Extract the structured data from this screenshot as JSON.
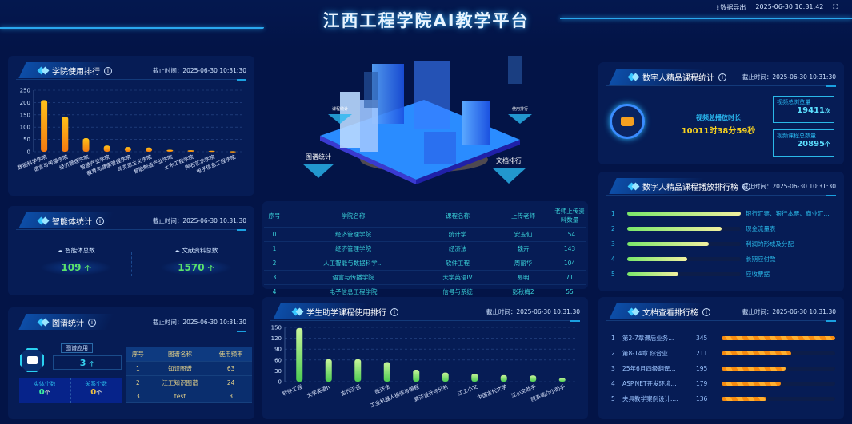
{
  "header": {
    "title": "江西工程学院AI教学平台",
    "export_label": "⇪数据导出",
    "datetime": "2025-06-30 10:31:42",
    "fullscreen_icon": "fullscreen-icon"
  },
  "date_label": "截止时间：2025-06-30 10:31:30",
  "college_rank": {
    "title": "学院使用排行"
  },
  "agent_stats": {
    "title": "智能体统计",
    "agent_label": "智能体总数",
    "agent_value": "109",
    "doc_label": "文献资料总数",
    "doc_value": "1570",
    "unit": "个"
  },
  "graph_stats": {
    "title": "图谱统计",
    "app_label": "图谱应用",
    "app_value": "3",
    "unit": "个",
    "entity_label": "实体个数",
    "entity_value": "0",
    "relation_label": "关系个数",
    "relation_value": "0",
    "columns": [
      "序号",
      "图谱名称",
      "使用频率"
    ],
    "rows": [
      [
        "1",
        "知识图谱",
        "63"
      ],
      [
        "2",
        "江工知识图谱",
        "24"
      ],
      [
        "3",
        "test",
        "3"
      ]
    ]
  },
  "center": {
    "labels": [
      "课程统计",
      "使用排行",
      "图谱统计",
      "文档排行"
    ]
  },
  "course_table": {
    "columns": [
      "序号",
      "学院名称",
      "课程名称",
      "上传老师",
      "老师上传资料数量"
    ],
    "rows": [
      [
        "0",
        "经济管理学院",
        "统计学",
        "安玉仙",
        "154"
      ],
      [
        "1",
        "经济管理学院",
        "经济法",
        "魏卉",
        "143"
      ],
      [
        "2",
        "人工智能与数据科学...",
        "软件工程",
        "周丽华",
        "104"
      ],
      [
        "3",
        "语言与传播学院",
        "大学英语IV",
        "易明",
        "71"
      ],
      [
        "4",
        "电子信息工程学院",
        "信号与系统",
        "彭秋梅2",
        "55"
      ]
    ]
  },
  "student_rank": {
    "title": "学生助学课程使用排行"
  },
  "digital": {
    "title": "数字人精品课程统计",
    "duration_label": "视频总播放时长",
    "duration_value": "10011时38分59秒",
    "views_label": "视频总浏览量",
    "views_value": "19411",
    "views_unit": "次",
    "count_label": "视频课程总数量",
    "count_value": "20895",
    "count_unit": "个"
  },
  "play_rank": {
    "title": "数字人精品课程播放排行榜",
    "items": [
      {
        "rank": "1",
        "name": "银行汇票、银行本票、商业汇...",
        "fraction": 1.0
      },
      {
        "rank": "2",
        "name": "现金流量表",
        "fraction": 0.83
      },
      {
        "rank": "3",
        "name": "利润的形成及分配",
        "fraction": 0.72
      },
      {
        "rank": "4",
        "name": "长期应付款",
        "fraction": 0.53
      },
      {
        "rank": "5",
        "name": "应收票据",
        "fraction": 0.45
      }
    ]
  },
  "doc_rank": {
    "title": "文档查看排行榜",
    "items": [
      {
        "rank": "1",
        "name": "第2-7章课后业务...",
        "value": "345"
      },
      {
        "rank": "2",
        "name": "第8-14章 综合业...",
        "value": "211"
      },
      {
        "rank": "3",
        "name": "25年6月四级翻译...",
        "value": "195"
      },
      {
        "rank": "4",
        "name": "ASP.NET开发环境...",
        "value": "179"
      },
      {
        "rank": "5",
        "name": "夹具教学案例设计....",
        "value": "136"
      }
    ]
  },
  "chart_data": [
    {
      "type": "bar",
      "categories": [
        "数据科学学院",
        "语言与传播学院",
        "经济管理学院",
        "智慧产业学院",
        "教育与健康管理学院",
        "马克思主义学院",
        "智能制造产业学院",
        "土木工程学院",
        "陶石艺术学院",
        "电子信息工程学院"
      ],
      "values": [
        210,
        143,
        55,
        25,
        19,
        17,
        8,
        6,
        4,
        2
      ],
      "ylim": [
        0,
        250
      ],
      "yticks": [
        "0",
        "50",
        "100",
        "150",
        "200",
        "250"
      ],
      "grid": true,
      "colors": [
        "#ffc21a",
        "#f57a10"
      ]
    },
    {
      "type": "bar",
      "categories": [
        "软件工程",
        "大学英语IV",
        "古代汉语",
        "经济法",
        "工业机器人操作与编程",
        "算法设计与分析",
        "江工小文",
        "中国古代文学",
        "江小文助手",
        "院系简介小助手"
      ],
      "values": [
        148,
        62,
        62,
        54,
        33,
        25,
        22,
        18,
        17,
        10
      ],
      "ylim": [
        0,
        150
      ],
      "yticks": [
        "0",
        "30",
        "60",
        "90",
        "120",
        "150"
      ],
      "grid": true,
      "colors": [
        "#c8f59a",
        "#4ccc52"
      ]
    }
  ]
}
